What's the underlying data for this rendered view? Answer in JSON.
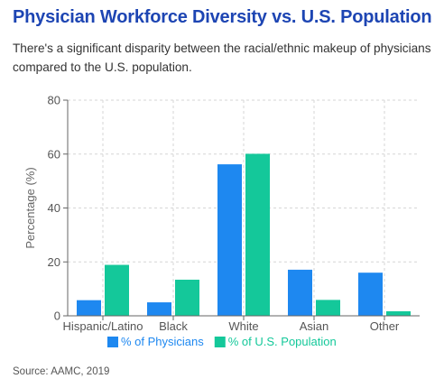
{
  "title": "Physician Workforce Diversity vs. U.S. Population",
  "subtitle": "There's a significant disparity between the racial/ethnic makeup of physicians compared to the U.S. population.",
  "source": "Source: AAMC, 2019",
  "colors": {
    "title": "#1d45b3",
    "physicians": "#1e88f0",
    "population": "#14c89a",
    "grid": "#d6d6d6",
    "axis": "#666666"
  },
  "chart_data": {
    "type": "bar",
    "categories": [
      "Hispanic/Latino",
      "Black",
      "White",
      "Asian",
      "Other"
    ],
    "series": [
      {
        "name": "% of Physicians",
        "values": [
          5.8,
          5.0,
          56.2,
          17.1,
          16.0
        ]
      },
      {
        "name": "% of U.S. Population",
        "values": [
          18.9,
          13.4,
          60.1,
          5.9,
          1.7
        ]
      }
    ],
    "title": "",
    "xlabel": "",
    "ylabel": "Percentage (%)",
    "ylim": [
      0,
      80
    ],
    "yticks": [
      "0",
      "20",
      "40",
      "60",
      "80"
    ],
    "grid": true,
    "legend_position": "bottom"
  }
}
